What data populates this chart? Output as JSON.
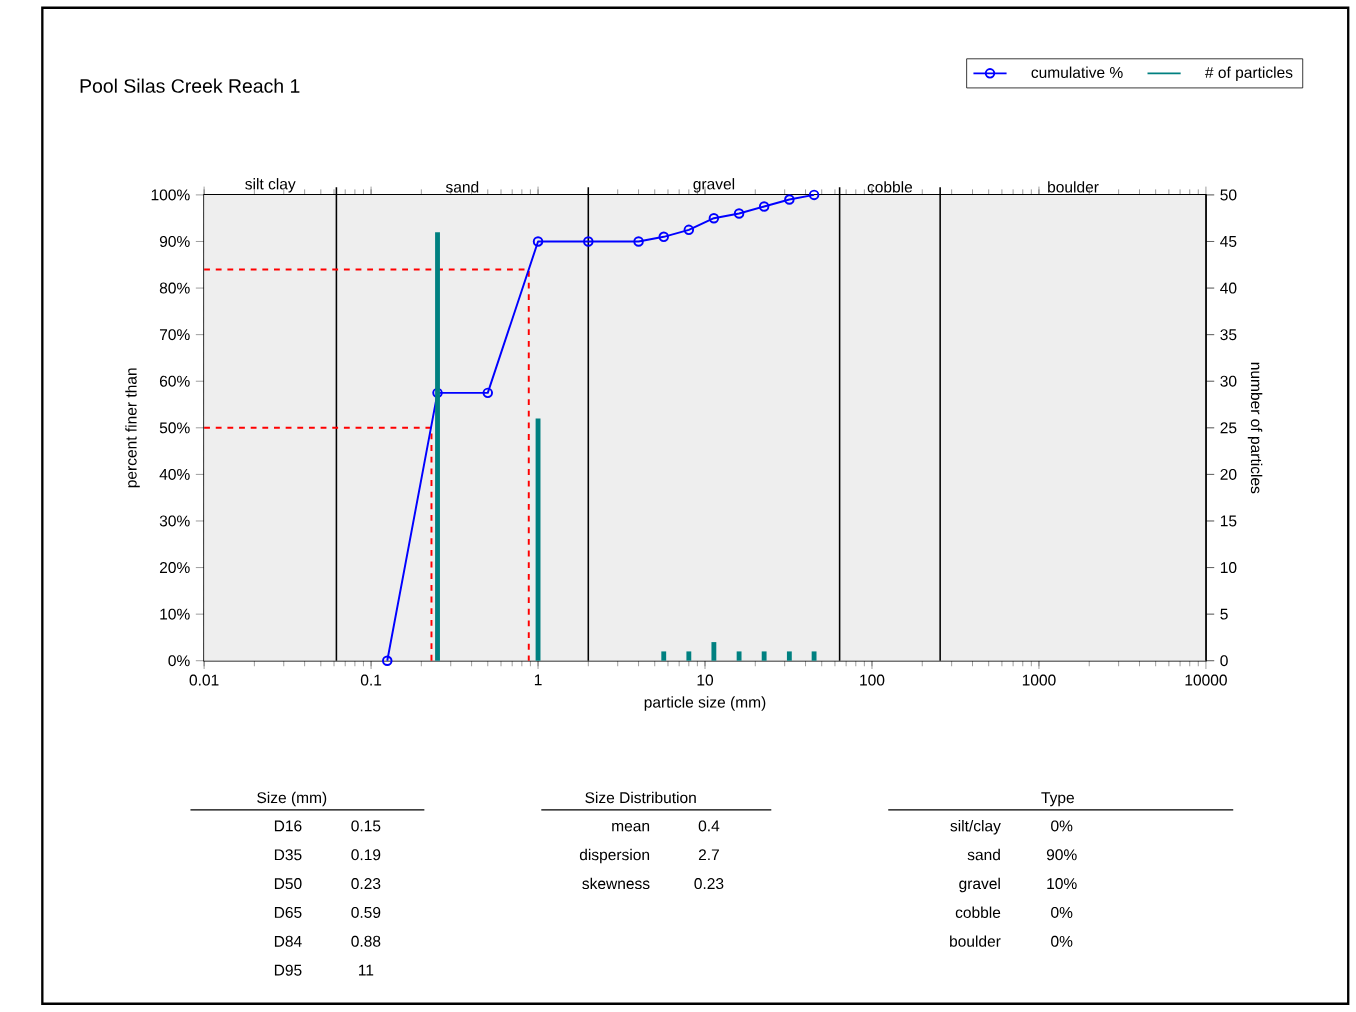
{
  "chart_data": {
    "type": "line",
    "title": "Pool Silas Creek Reach 1",
    "xlabel": "particle size (mm)",
    "ylabel": "percent finer than",
    "y2label": "number of particles",
    "log": "x",
    "grid": true,
    "legend": "top right",
    "xlim": [
      0.01,
      10000
    ],
    "xticks": [
      0.01,
      0.1,
      1,
      10,
      100,
      1000,
      10000
    ],
    "ylim": [
      0,
      100
    ],
    "yticks": [
      {
        "value": 0,
        "label": "0%"
      },
      {
        "value": 10,
        "label": "10%"
      },
      {
        "value": 20,
        "label": "20%"
      },
      {
        "value": 30,
        "label": "30%"
      },
      {
        "value": 40,
        "label": "40%"
      },
      {
        "value": 50,
        "label": "50%"
      },
      {
        "value": 60,
        "label": "60%"
      },
      {
        "value": 70,
        "label": "70%"
      },
      {
        "value": 80,
        "label": "80%"
      },
      {
        "value": 90,
        "label": "90%"
      },
      {
        "value": 100,
        "label": "100%"
      }
    ],
    "y2lim": [
      0,
      50
    ],
    "y2ticks": [
      0,
      5,
      10,
      15,
      20,
      25,
      30,
      35,
      40,
      45,
      50
    ],
    "series": [
      {
        "line_style": "dashed",
        "marker": "none",
        "color": "#ff0000",
        "x": [
          0.01,
          0.88,
          0.88
        ],
        "values": [
          84,
          84,
          0
        ]
      },
      {
        "line_style": "dashed",
        "marker": "none",
        "color": "#ff0000",
        "x": [
          0.01,
          0.23,
          0.23
        ],
        "values": [
          50,
          50,
          0
        ]
      },
      {
        "name": "cumulative %",
        "marker": "circle",
        "color": "#0000ff",
        "x": [
          0.125,
          0.25,
          0.5,
          1,
          2,
          4,
          5.66,
          8,
          11.3,
          16,
          22.6,
          32,
          45
        ],
        "values": [
          0,
          57.5,
          57.5,
          90,
          90,
          90,
          91,
          92.5,
          95,
          96,
          97.5,
          99,
          100
        ]
      },
      {
        "name": "# of particles",
        "type": "bar",
        "axis": "y2",
        "color": "#008080",
        "x": [
          0.062,
          0.125,
          0.25,
          0.5,
          1,
          2,
          4,
          5.66,
          8,
          11.3,
          16,
          22.6,
          32,
          45,
          64,
          90,
          128,
          180,
          256,
          362,
          512,
          1024,
          2048,
          4096
        ],
        "values": [
          0,
          0,
          46,
          0,
          26,
          0,
          0,
          1,
          1,
          2,
          1,
          1,
          1,
          1,
          0,
          0,
          0,
          0,
          0,
          0,
          0,
          0,
          0,
          0
        ]
      }
    ],
    "ref_lines": [
      {
        "axis": "x",
        "value": 0.062,
        "color": "#000000"
      },
      {
        "axis": "x",
        "value": 2,
        "color": "#000000"
      },
      {
        "axis": "x",
        "value": 64,
        "color": "#000000"
      },
      {
        "axis": "x",
        "value": 256,
        "color": "#000000"
      }
    ],
    "annotations": [
      "Size (mm)",
      "D16",
      "0.15",
      "D35",
      "0.19",
      "D50",
      "0.23",
      "D65",
      "0.59",
      "D84",
      "0.88",
      "D95",
      "11",
      "Size Distribution",
      "mean",
      "0.4",
      "dispersion",
      "2.7",
      "skewness",
      "0.23",
      "Type",
      "silt/clay",
      "0%",
      "sand",
      "90%",
      "gravel",
      "10%",
      "cobble",
      "0%",
      "boulder",
      "0%",
      "silt clay",
      "sand",
      "gravel",
      "cobble",
      "boulder"
    ]
  }
}
